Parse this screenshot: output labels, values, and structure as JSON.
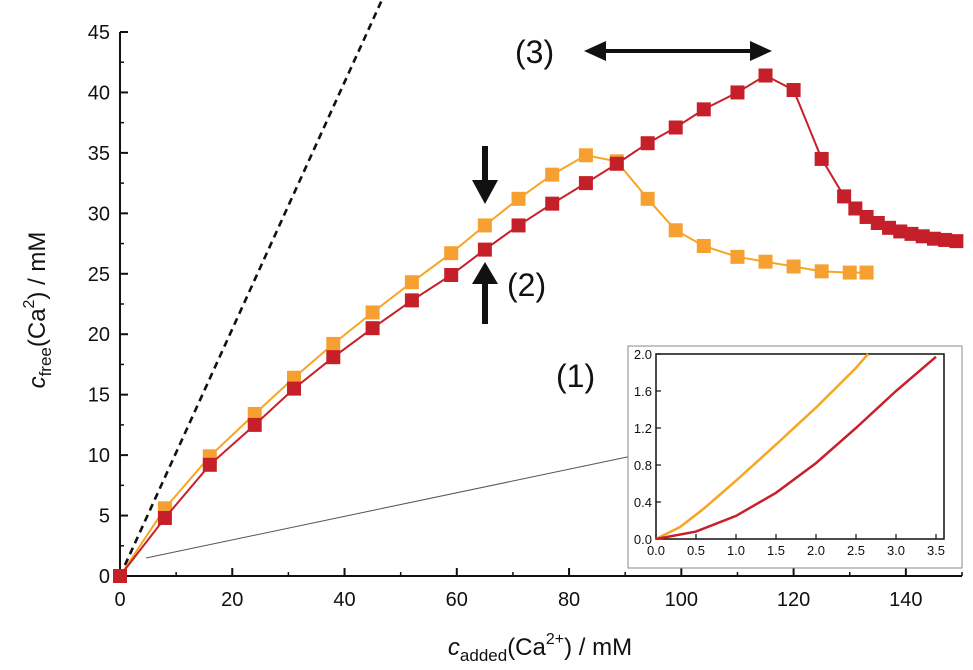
{
  "chart_data": {
    "type": "line",
    "x_axis": {
      "ticks": [
        "0",
        "20",
        "40",
        "60",
        "80",
        "100",
        "120",
        "140"
      ],
      "range": [
        0,
        150
      ]
    },
    "y_axis": {
      "ticks": [
        "0",
        "5",
        "10",
        "15",
        "20",
        "25",
        "30",
        "35",
        "40",
        "45"
      ],
      "range": [
        0,
        45
      ]
    },
    "xlabel": {
      "main": "c",
      "sub": "added",
      "rest": "(Ca",
      "sup": "2+",
      "tail": ") / mM"
    },
    "ylabel": {
      "main": "c",
      "sub": "free",
      "rest": "(Ca",
      "sup": "2",
      "tail": ") / mM"
    },
    "reference_line": {
      "style": "dashed",
      "color": "#111111",
      "points": [
        [
          0,
          0
        ],
        [
          47,
          48
        ]
      ]
    },
    "series": [
      {
        "name": "orange",
        "color": "#f5a623",
        "marker_color": "#f5a030",
        "x": [
          0,
          8,
          16,
          24,
          31,
          38,
          45,
          52,
          59,
          65,
          71,
          77,
          83,
          88.5,
          94,
          99,
          104,
          110,
          115,
          120,
          125,
          130,
          133
        ],
        "y": [
          0,
          5.6,
          9.9,
          13.4,
          16.4,
          19.2,
          21.8,
          24.3,
          26.7,
          29.0,
          31.2,
          33.2,
          34.8,
          34.3,
          31.2,
          28.6,
          27.3,
          26.4,
          26.0,
          25.6,
          25.2,
          25.1,
          25.1
        ]
      },
      {
        "name": "red",
        "color": "#c8202a",
        "marker_color": "#c51f2a",
        "x": [
          0,
          8,
          16,
          24,
          31,
          38,
          45,
          52,
          59,
          65,
          71,
          77,
          83,
          88.5,
          94,
          99,
          104,
          110,
          115,
          120,
          125,
          129,
          131,
          133,
          135,
          137,
          139,
          141,
          143,
          145,
          147,
          149
        ],
        "y": [
          0,
          4.8,
          9.2,
          12.5,
          15.5,
          18.1,
          20.5,
          22.8,
          24.9,
          27.0,
          29.0,
          30.8,
          32.5,
          34.1,
          35.8,
          37.1,
          38.6,
          40.0,
          41.4,
          40.2,
          34.5,
          31.4,
          30.4,
          29.7,
          29.2,
          28.8,
          28.5,
          28.3,
          28.1,
          27.9,
          27.8,
          27.7
        ]
      }
    ],
    "annotations": [
      {
        "label": "(1)"
      },
      {
        "label": "(2)"
      },
      {
        "label": "(3)"
      }
    ],
    "inset": {
      "x_ticks": [
        "0.0",
        "0.5",
        "1.0",
        "1.5",
        "2.0",
        "2.5",
        "3.0",
        "3.5"
      ],
      "y_ticks": [
        "0.0",
        "0.4",
        "0.8",
        "1.2",
        "1.6",
        "2.0"
      ],
      "x_range": [
        0,
        3.6
      ],
      "y_range": [
        0,
        2.0
      ],
      "series": [
        {
          "name": "orange",
          "color": "#f5a623",
          "x": [
            0,
            0.3,
            0.6,
            1.0,
            1.5,
            2.0,
            2.5,
            2.65
          ],
          "y": [
            0,
            0.13,
            0.33,
            0.63,
            1.02,
            1.42,
            1.85,
            2.0
          ]
        },
        {
          "name": "red",
          "color": "#c8202a",
          "x": [
            0,
            0.5,
            1.0,
            1.5,
            2.0,
            2.5,
            3.0,
            3.5
          ],
          "y": [
            0,
            0.08,
            0.25,
            0.5,
            0.82,
            1.2,
            1.6,
            1.97
          ]
        }
      ]
    }
  }
}
